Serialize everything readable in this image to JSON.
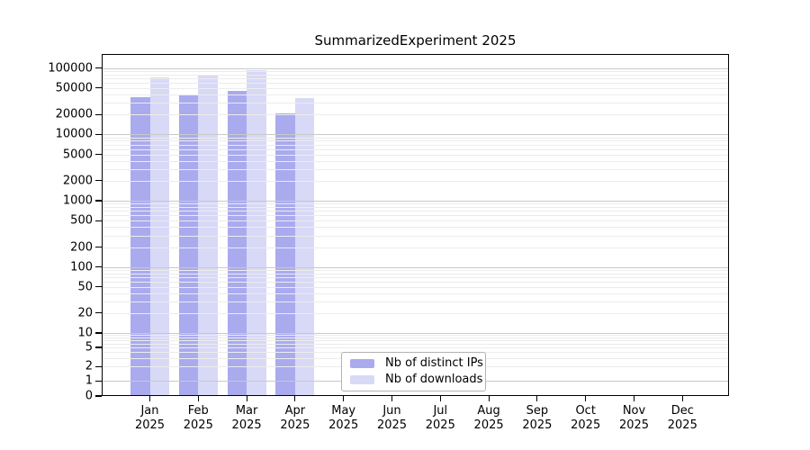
{
  "chart_data": {
    "type": "bar",
    "title": "SummarizedExperiment 2025",
    "xlabel": "",
    "ylabel": "",
    "y_scale": "log-with-zero",
    "ylim": [
      0,
      163000
    ],
    "grid": "horizontal",
    "legend_position": "bottom-center-inside",
    "categories": [
      "Jan",
      "Feb",
      "Mar",
      "Apr",
      "May",
      "Jun",
      "Jul",
      "Aug",
      "Sep",
      "Oct",
      "Nov",
      "Dec"
    ],
    "x_year_line": "2025",
    "y_ticks": [
      0,
      1,
      2,
      5,
      10,
      20,
      50,
      100,
      200,
      500,
      1000,
      2000,
      5000,
      10000,
      20000,
      50000,
      100000
    ],
    "series": [
      {
        "name": "Nb of distinct IPs",
        "color": "#aaaaee",
        "values": [
          36700,
          40400,
          45700,
          20900,
          null,
          null,
          null,
          null,
          null,
          null,
          null,
          null
        ]
      },
      {
        "name": "Nb of downloads",
        "color": "#d8d8f7",
        "values": [
          73100,
          80400,
          94000,
          35600,
          null,
          null,
          null,
          null,
          null,
          null,
          null,
          null
        ]
      }
    ]
  }
}
